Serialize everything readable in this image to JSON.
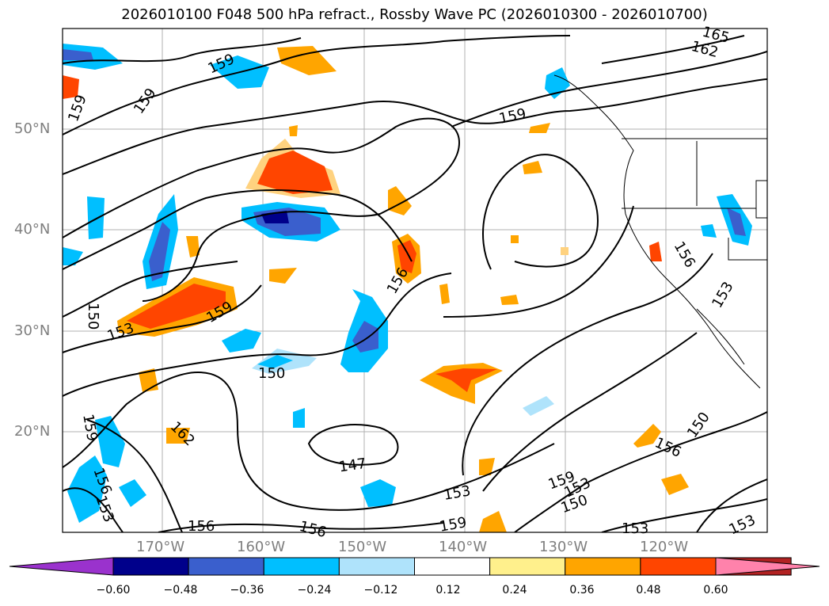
{
  "title": "2026010100 F048 500 hPa refract., Rossby Wave PC (2026010300 - 2026010700)",
  "lat_labels": [
    "50°N",
    "40°N",
    "30°N",
    "20°N"
  ],
  "lon_labels": [
    "170°W",
    "160°W",
    "150°W",
    "140°W",
    "130°W",
    "120°W"
  ],
  "contour_labels": [
    "165",
    "162",
    "159",
    "159",
    "159",
    "159",
    "156",
    "150",
    "153",
    "159",
    "150",
    "147",
    "153",
    "159",
    "153",
    "150",
    "159",
    "162",
    "156",
    "153",
    "156",
    "156",
    "159",
    "156",
    "153",
    "150",
    "153",
    "153",
    "156",
    "153"
  ],
  "colorbar": {
    "ticks": [
      "−0.60",
      "−0.48",
      "−0.36",
      "−0.24",
      "−0.12",
      "0.12",
      "0.24",
      "0.36",
      "0.48",
      "0.60"
    ],
    "colors": [
      "#9a32cd",
      "#00008b",
      "#3a5fcd",
      "#00bfff",
      "#afe3fb",
      "#ffffff",
      "#fff08c",
      "#ffa500",
      "#ff4500",
      "#b22222",
      "#ff82ab"
    ]
  }
}
